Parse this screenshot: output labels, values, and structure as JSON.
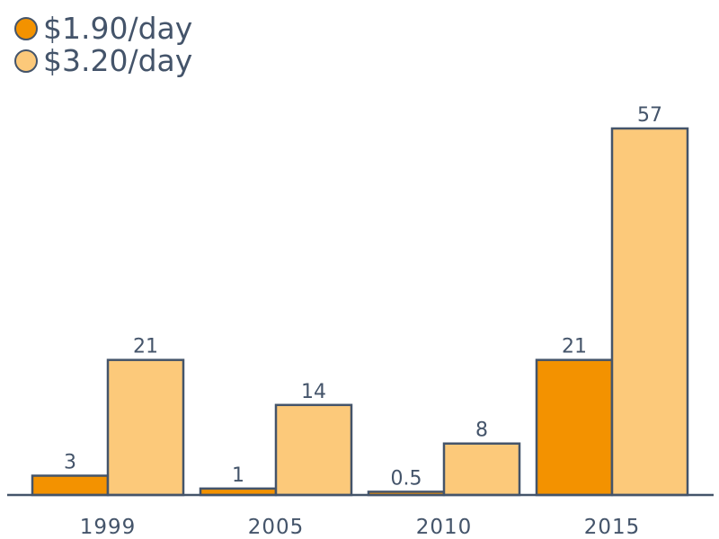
{
  "chart_data": {
    "type": "bar",
    "categories": [
      "1999",
      "2005",
      "2010",
      "2015"
    ],
    "series": [
      {
        "name": "$1.90/day",
        "values": [
          3,
          1,
          0.5,
          21
        ],
        "value_labels": [
          "3",
          "1",
          "0.5",
          "21"
        ],
        "color": "#f39200"
      },
      {
        "name": "$3.20/day",
        "values": [
          21,
          14,
          8,
          57
        ],
        "value_labels": [
          "21",
          "14",
          "8",
          "57"
        ],
        "color": "#fcc97a"
      }
    ],
    "ylim": [
      0,
      57
    ],
    "legend_position": "top-left",
    "grid": false,
    "colors": {
      "text": "#44546a",
      "stroke": "#44546a"
    }
  }
}
